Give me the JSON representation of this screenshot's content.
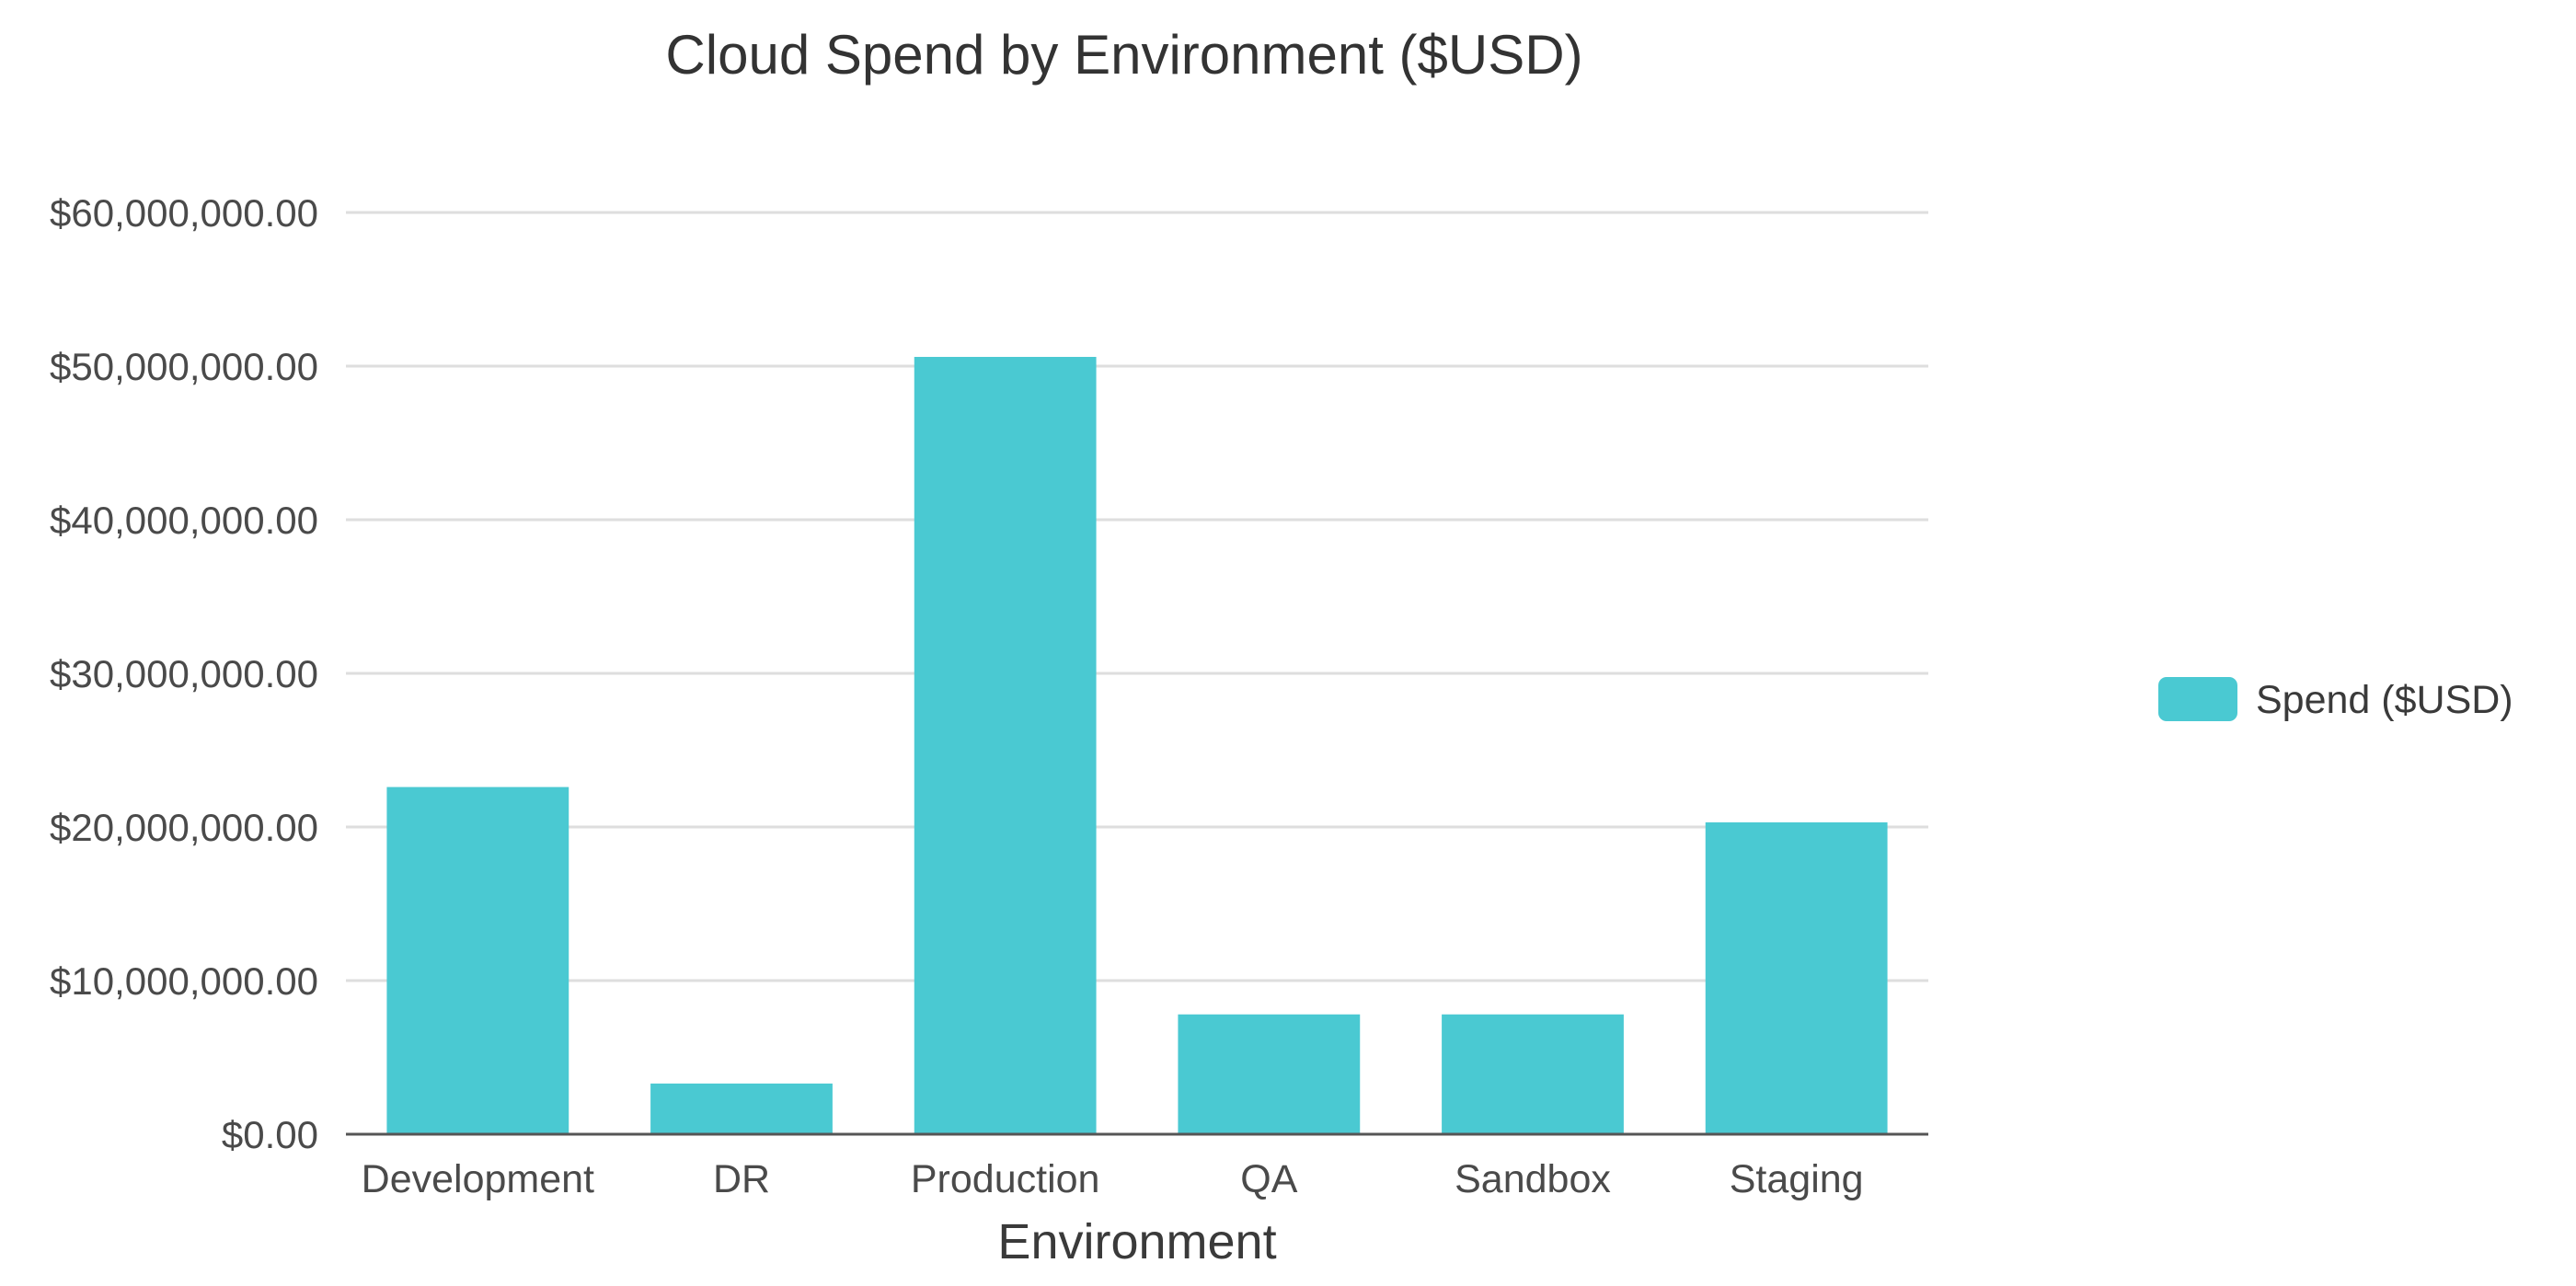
{
  "chart_data": {
    "type": "bar",
    "title": "Cloud Spend by Environment ($USD)",
    "xlabel": "Environment",
    "ylabel": "",
    "categories": [
      "Development",
      "DR",
      "Production",
      "QA",
      "Sandbox",
      "Staging"
    ],
    "series": [
      {
        "name": "Spend ($USD)",
        "values": [
          22600000,
          3300000,
          50600000,
          7800000,
          7800000,
          20300000
        ],
        "color": "#4ac9d2"
      }
    ],
    "ylim": [
      0,
      60000000
    ],
    "yticks": [
      0,
      10000000,
      20000000,
      30000000,
      40000000,
      50000000,
      60000000
    ],
    "ytick_labels": [
      "$0.00",
      "$10,000,000.00",
      "$20,000,000.00",
      "$30,000,000.00",
      "$40,000,000.00",
      "$50,000,000.00",
      "$60,000,000.00"
    ],
    "grid": true,
    "legend_position": "right"
  }
}
